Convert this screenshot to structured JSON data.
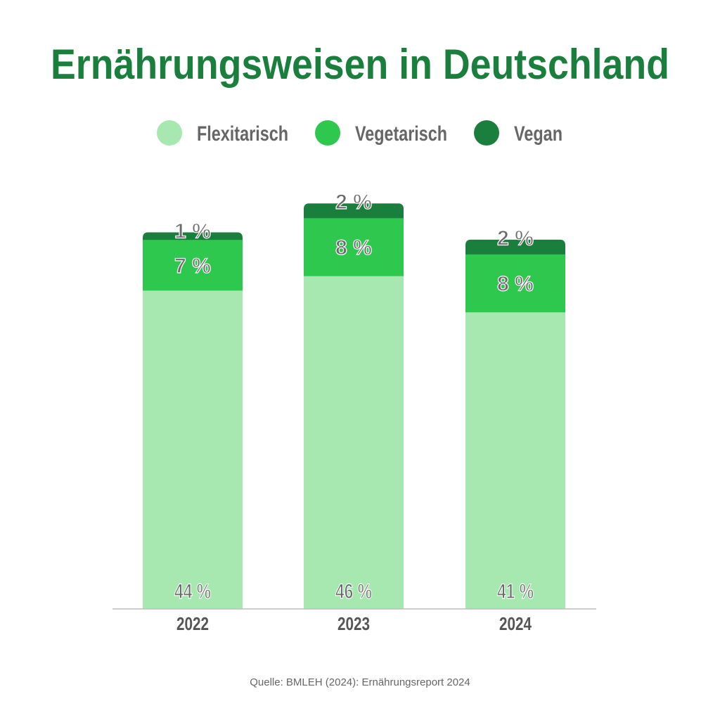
{
  "chart_data": {
    "type": "bar",
    "stacked": true,
    "title": "Ernährungsweisen in Deutschland",
    "categories": [
      "2022",
      "2023",
      "2024"
    ],
    "series": [
      {
        "name": "Flexitarisch",
        "color": "#a6e8b0",
        "values": [
          44,
          46,
          41
        ],
        "labels": [
          "44 %",
          "46 %",
          "41 %"
        ]
      },
      {
        "name": "Vegetarisch",
        "color": "#2ec84e",
        "values": [
          7,
          8,
          8
        ],
        "labels": [
          "7 %",
          "8 %",
          "8 %"
        ]
      },
      {
        "name": "Vegan",
        "color": "#1a7f3c",
        "values": [
          1,
          2,
          2
        ],
        "labels": [
          "1 %",
          "2 %",
          "2 %"
        ]
      }
    ],
    "legend_position": "top",
    "grid": false,
    "xlabel": "",
    "ylabel": "",
    "ylim": [
      0,
      60
    ],
    "source": "Quelle: BMLEH (2024): Ernährungsreport 2024"
  }
}
